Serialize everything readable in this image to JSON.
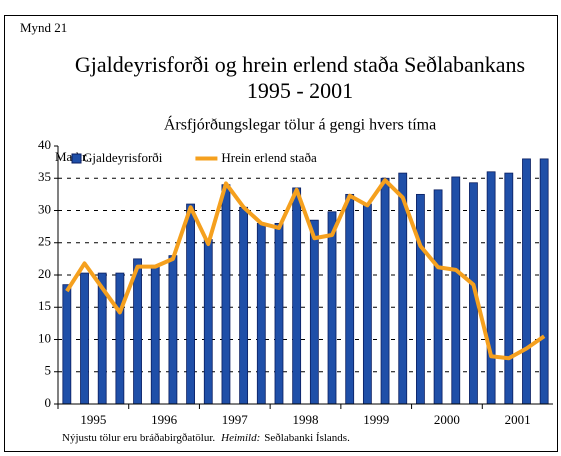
{
  "chart_data": {
    "type": "bar_line",
    "label": "Mynd 21",
    "title": [
      "Gjaldeyrisforði og hrein erlend staða Seðlabankans",
      "1995 - 2001"
    ],
    "subtitle": "Ársfjórðungslegar tölur á gengi hvers tíma",
    "y_axis_label": "Ma.kr.",
    "x_labels": [
      "1995",
      "1996",
      "1997",
      "1998",
      "1999",
      "2000",
      "2001"
    ],
    "series": [
      {
        "name": "Gjaldeyrisforði",
        "kind": "bar",
        "color": "#1f4fa8",
        "values": [
          18.5,
          20.3,
          20.3,
          20.3,
          22.5,
          21.5,
          23,
          31,
          25.5,
          34,
          30.5,
          28,
          28,
          33.5,
          28.5,
          29.8,
          32.5,
          31,
          35,
          35.8,
          32.5,
          33.2,
          35.2,
          34.3,
          36,
          35.8,
          38,
          38
        ]
      },
      {
        "name": "Hrein erlend staða",
        "kind": "line",
        "color": "#f5a01e",
        "values": [
          17.5,
          21.8,
          18,
          14.2,
          21.3,
          21.3,
          22.5,
          30.5,
          24.8,
          34.2,
          30.5,
          28,
          27.3,
          33.2,
          25.7,
          26.2,
          32.3,
          30.8,
          34.7,
          32,
          24.5,
          21.2,
          20.8,
          18.5,
          7.4,
          7.1,
          8.6,
          10.5
        ]
      }
    ],
    "ylim": [
      0,
      40
    ],
    "yticks": [
      0,
      5,
      10,
      15,
      20,
      25,
      30,
      35,
      40
    ],
    "grid": true,
    "legend": "top-left",
    "note": {
      "text": "Nýjustu tölur eru bráðabirgðatölur.",
      "source_label": "Heimild:",
      "source": "Seðlabanki Íslands."
    }
  }
}
